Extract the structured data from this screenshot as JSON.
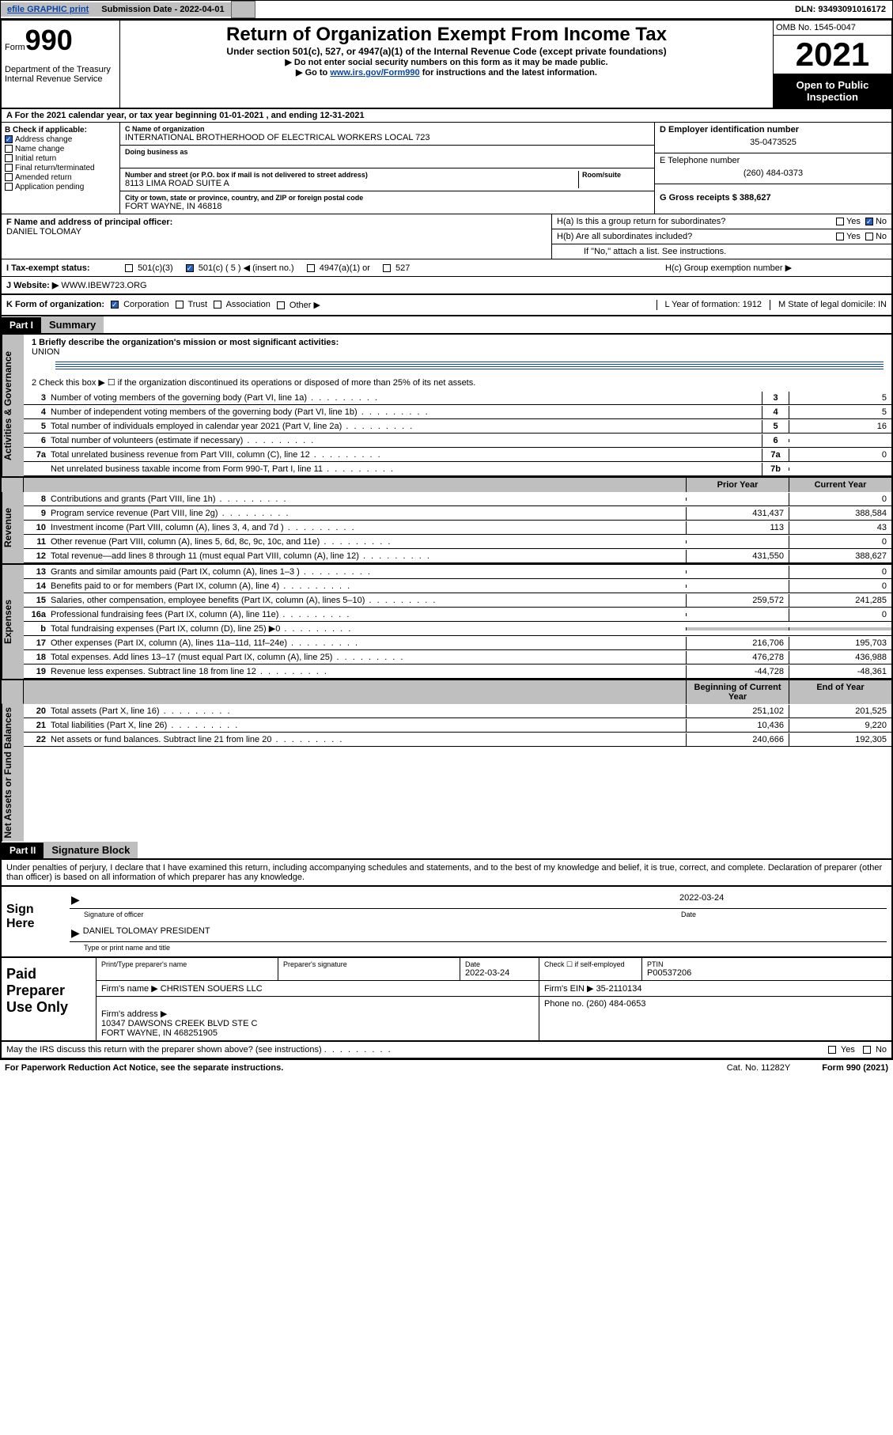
{
  "topbar": {
    "efile": "efile GRAPHIC print",
    "subdate_label": "Submission Date - 2022-04-01",
    "dln": "DLN: 93493091016172"
  },
  "header": {
    "form_word": "Form",
    "form_num": "990",
    "dept": "Department of the Treasury\nInternal Revenue Service",
    "title": "Return of Organization Exempt From Income Tax",
    "subtitle": "Under section 501(c), 527, or 4947(a)(1) of the Internal Revenue Code (except private foundations)",
    "instr1": "▶ Do not enter social security numbers on this form as it may be made public.",
    "instr2_pre": "▶ Go to ",
    "instr2_link": "www.irs.gov/Form990",
    "instr2_post": " for instructions and the latest information.",
    "omb": "OMB No. 1545-0047",
    "year": "2021",
    "inspect": "Open to Public Inspection"
  },
  "row_a": "A For the 2021 calendar year, or tax year beginning 01-01-2021   , and ending 12-31-2021",
  "col_b": {
    "hdr": "B Check if applicable:",
    "items": [
      "Address change",
      "Name change",
      "Initial return",
      "Final return/terminated",
      "Amended return",
      "Application pending"
    ],
    "checked_index": 0
  },
  "col_c": {
    "name_lbl": "C Name of organization",
    "name": "INTERNATIONAL BROTHERHOOD OF ELECTRICAL WORKERS LOCAL 723",
    "dba_lbl": "Doing business as",
    "addr_lbl": "Number and street (or P.O. box if mail is not delivered to street address)",
    "room_lbl": "Room/suite",
    "addr": "8113 LIMA ROAD SUITE A",
    "city_lbl": "City or town, state or province, country, and ZIP or foreign postal code",
    "city": "FORT WAYNE, IN  46818"
  },
  "col_de": {
    "d_lbl": "D Employer identification number",
    "d_val": "35-0473525",
    "e_lbl": "E Telephone number",
    "e_val": "(260) 484-0373",
    "g_lbl": "G Gross receipts $ 388,627"
  },
  "fg": {
    "f_lbl": "F Name and address of principal officer:",
    "f_name": "DANIEL TOLOMAY",
    "ha": "H(a)  Is this a group return for subordinates?",
    "ha_yes": "Yes",
    "ha_no": "No",
    "hb": "H(b)  Are all subordinates included?",
    "hb_yes": "Yes",
    "hb_no": "No",
    "hb_note": "If \"No,\" attach a list. See instructions.",
    "hc": "H(c)  Group exemption number ▶"
  },
  "status": {
    "i_lbl": "I   Tax-exempt status:",
    "opts": [
      "501(c)(3)",
      "501(c) ( 5 ) ◀ (insert no.)",
      "4947(a)(1) or",
      "527"
    ],
    "checked": 1,
    "j_lbl": "J   Website: ▶",
    "j_val": "WWW.IBEW723.ORG"
  },
  "klm": {
    "k_lbl": "K Form of organization:",
    "k_opts": [
      "Corporation",
      "Trust",
      "Association",
      "Other ▶"
    ],
    "k_checked": 0,
    "l_lbl": "L Year of formation: 1912",
    "m_lbl": "M State of legal domicile: IN"
  },
  "part1": {
    "num": "Part I",
    "title": "Summary",
    "line1_lbl": "1   Briefly describe the organization's mission or most significant activities:",
    "line1_val": "UNION",
    "line2": "2   Check this box ▶ ☐  if the organization discontinued its operations or disposed of more than 25% of its net assets.",
    "side_gov": "Activities & Governance",
    "side_rev": "Revenue",
    "side_exp": "Expenses",
    "side_net": "Net Assets or Fund Balances",
    "prior_hdr": "Prior Year",
    "curr_hdr": "Current Year",
    "beg_hdr": "Beginning of Current Year",
    "end_hdr": "End of Year",
    "gov_lines": [
      {
        "n": "3",
        "t": "Number of voting members of the governing body (Part VI, line 1a)",
        "box": "3",
        "v": "5"
      },
      {
        "n": "4",
        "t": "Number of independent voting members of the governing body (Part VI, line 1b)",
        "box": "4",
        "v": "5"
      },
      {
        "n": "5",
        "t": "Total number of individuals employed in calendar year 2021 (Part V, line 2a)",
        "box": "5",
        "v": "16"
      },
      {
        "n": "6",
        "t": "Total number of volunteers (estimate if necessary)",
        "box": "6",
        "v": ""
      },
      {
        "n": "7a",
        "t": "Total unrelated business revenue from Part VIII, column (C), line 12",
        "box": "7a",
        "v": "0"
      },
      {
        "n": "",
        "t": "Net unrelated business taxable income from Form 990-T, Part I, line 11",
        "box": "7b",
        "v": ""
      }
    ],
    "rev_lines": [
      {
        "n": "8",
        "t": "Contributions and grants (Part VIII, line 1h)",
        "p": "",
        "c": "0"
      },
      {
        "n": "9",
        "t": "Program service revenue (Part VIII, line 2g)",
        "p": "431,437",
        "c": "388,584"
      },
      {
        "n": "10",
        "t": "Investment income (Part VIII, column (A), lines 3, 4, and 7d )",
        "p": "113",
        "c": "43"
      },
      {
        "n": "11",
        "t": "Other revenue (Part VIII, column (A), lines 5, 6d, 8c, 9c, 10c, and 11e)",
        "p": "",
        "c": "0"
      },
      {
        "n": "12",
        "t": "Total revenue—add lines 8 through 11 (must equal Part VIII, column (A), line 12)",
        "p": "431,550",
        "c": "388,627"
      }
    ],
    "exp_lines": [
      {
        "n": "13",
        "t": "Grants and similar amounts paid (Part IX, column (A), lines 1–3 )",
        "p": "",
        "c": "0"
      },
      {
        "n": "14",
        "t": "Benefits paid to or for members (Part IX, column (A), line 4)",
        "p": "",
        "c": "0"
      },
      {
        "n": "15",
        "t": "Salaries, other compensation, employee benefits (Part IX, column (A), lines 5–10)",
        "p": "259,572",
        "c": "241,285"
      },
      {
        "n": "16a",
        "t": "Professional fundraising fees (Part IX, column (A), line 11e)",
        "p": "",
        "c": "0"
      },
      {
        "n": "b",
        "t": "Total fundraising expenses (Part IX, column (D), line 25) ▶0",
        "p": "shaded",
        "c": "shaded"
      },
      {
        "n": "17",
        "t": "Other expenses (Part IX, column (A), lines 11a–11d, 11f–24e)",
        "p": "216,706",
        "c": "195,703"
      },
      {
        "n": "18",
        "t": "Total expenses. Add lines 13–17 (must equal Part IX, column (A), line 25)",
        "p": "476,278",
        "c": "436,988"
      },
      {
        "n": "19",
        "t": "Revenue less expenses. Subtract line 18 from line 12",
        "p": "-44,728",
        "c": "-48,361"
      }
    ],
    "net_lines": [
      {
        "n": "20",
        "t": "Total assets (Part X, line 16)",
        "p": "251,102",
        "c": "201,525"
      },
      {
        "n": "21",
        "t": "Total liabilities (Part X, line 26)",
        "p": "10,436",
        "c": "9,220"
      },
      {
        "n": "22",
        "t": "Net assets or fund balances. Subtract line 21 from line 20",
        "p": "240,666",
        "c": "192,305"
      }
    ]
  },
  "part2": {
    "num": "Part II",
    "title": "Signature Block",
    "penalty": "Under penalties of perjury, I declare that I have examined this return, including accompanying schedules and statements, and to the best of my knowledge and belief, it is true, correct, and complete. Declaration of preparer (other than officer) is based on all information of which preparer has any knowledge.",
    "sign_here": "Sign Here",
    "sig_officer": "Signature of officer",
    "sig_date": "Date",
    "sig_date_val": "2022-03-24",
    "sig_name": "DANIEL TOLOMAY PRESIDENT",
    "sig_name_lbl": "Type or print name and title",
    "paid": "Paid Preparer Use Only",
    "prep_name_lbl": "Print/Type preparer's name",
    "prep_sig_lbl": "Preparer's signature",
    "prep_date_lbl": "Date",
    "prep_date_val": "2022-03-24",
    "prep_self": "Check ☐ if self-employed",
    "ptin_lbl": "PTIN",
    "ptin_val": "P00537206",
    "firm_name_lbl": "Firm's name    ▶",
    "firm_name": "CHRISTEN SOUERS LLC",
    "firm_ein_lbl": "Firm's EIN ▶",
    "firm_ein": "35-2110134",
    "firm_addr_lbl": "Firm's address ▶",
    "firm_addr": "10347 DAWSONS CREEK BLVD STE C\nFORT WAYNE, IN  468251905",
    "phone_lbl": "Phone no.",
    "phone": "(260) 484-0653",
    "may_irs": "May the IRS discuss this return with the preparer shown above? (see instructions)",
    "may_yes": "Yes",
    "may_no": "No"
  },
  "footer": {
    "pra": "For Paperwork Reduction Act Notice, see the separate instructions.",
    "cat": "Cat. No. 11282Y",
    "form": "Form 990 (2021)"
  }
}
